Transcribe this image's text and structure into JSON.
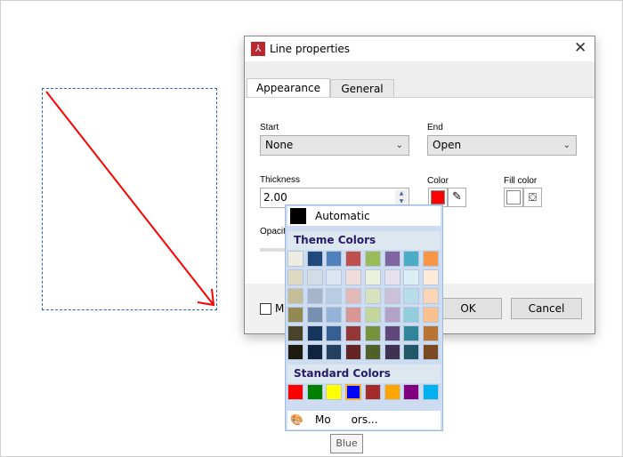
{
  "dialog": {
    "title": "Line properties",
    "tabs": [
      {
        "label": "Appearance"
      },
      {
        "label": "General"
      }
    ],
    "start": {
      "label": "Start",
      "value": "None"
    },
    "end": {
      "label": "End",
      "value": "Open"
    },
    "thickness": {
      "label": "Thickness",
      "value": "2.00"
    },
    "color": {
      "label": "Color",
      "value": "#ff0000"
    },
    "fill_color": {
      "label": "Fill color"
    },
    "opacity": {
      "label": "Opacit"
    },
    "checkbox_label": "M",
    "ok": "OK",
    "cancel": "Cancel"
  },
  "palette": {
    "automatic": "Automatic",
    "theme_header": "Theme Colors",
    "standard_header": "Standard Colors",
    "more_colors": "Mo      ors...",
    "tooltip": "Blue",
    "theme": [
      [
        "#eeece1",
        "#1f497d",
        "#4f81bd",
        "#c0504d",
        "#9bbb59",
        "#8064a2",
        "#4bacc6",
        "#f79646"
      ],
      [
        "#ddd9c3",
        "#d3dbe6",
        "#dbe5f1",
        "#f2dcdb",
        "#ebf1dd",
        "#e5e0ec",
        "#dbeef3",
        "#fdeada"
      ],
      [
        "#c4bd97",
        "#a5b5cc",
        "#b8cce4",
        "#e5b9b7",
        "#d7e3bc",
        "#ccc1d9",
        "#b7dde8",
        "#fbd5b5"
      ],
      [
        "#938953",
        "#7890b0",
        "#95b3d7",
        "#d99694",
        "#c3d69b",
        "#b2a2c7",
        "#92cddc",
        "#fac08f"
      ],
      [
        "#494429",
        "#17365d",
        "#366092",
        "#953734",
        "#76923c",
        "#5f497a",
        "#31859b",
        "#b87333"
      ],
      [
        "#1d1b10",
        "#0f243e",
        "#244061",
        "#632423",
        "#4f6128",
        "#3f3151",
        "#205867",
        "#7a4a22"
      ]
    ],
    "standard": [
      "#ff0000",
      "#008000",
      "#ffff00",
      "#0000ff",
      "#a52a2a",
      "#ffa500",
      "#800080",
      "#00b0f0"
    ],
    "hovered": "Blue"
  }
}
